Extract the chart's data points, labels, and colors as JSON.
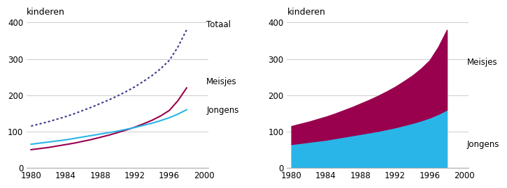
{
  "years": [
    1980,
    1981,
    1982,
    1983,
    1984,
    1985,
    1986,
    1987,
    1988,
    1989,
    1990,
    1991,
    1992,
    1993,
    1994,
    1995,
    1996,
    1997,
    1998
  ],
  "jongens": [
    65,
    68,
    71,
    74,
    77,
    81,
    85,
    89,
    93,
    97,
    101,
    106,
    111,
    117,
    123,
    130,
    138,
    148,
    160
  ],
  "meisjes": [
    50,
    53,
    56,
    60,
    64,
    68,
    73,
    78,
    84,
    90,
    97,
    104,
    112,
    121,
    131,
    143,
    158,
    185,
    220
  ],
  "totaal": [
    115,
    121,
    127,
    134,
    141,
    149,
    158,
    167,
    177,
    187,
    198,
    210,
    223,
    238,
    254,
    273,
    296,
    333,
    380
  ],
  "color_jongens": "#29b5e8",
  "color_meisjes": "#99004d",
  "color_totaal": "#3a3a8c",
  "ylabel": "kinderen",
  "ylim": [
    0,
    400
  ],
  "yticks": [
    0,
    100,
    200,
    300,
    400
  ],
  "xlim_start": 1979.5,
  "xlim_end": 2000.5,
  "xticks": [
    1980,
    1984,
    1988,
    1992,
    1996,
    2000
  ],
  "bg_color": "#ffffff",
  "grid_color": "#cccccc",
  "label_totaal": "Totaal",
  "label_meisjes": "Meisjes",
  "label_jongens": "Jongens"
}
